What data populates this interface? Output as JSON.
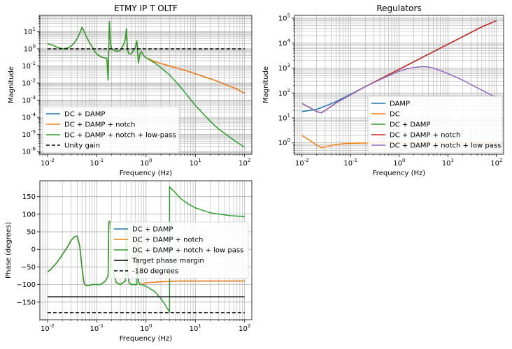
{
  "chart_data": [
    {
      "type": "line",
      "id": "oltf",
      "title": "ETMY IP T OLTF",
      "xlabel": "Frequency (Hz)",
      "ylabel": "Magnitude",
      "xscale": "log",
      "yscale": "log",
      "xlim": [
        0.007,
        140
      ],
      "ylim": [
        7e-07,
        90
      ],
      "grid": true,
      "legend": "lower-left",
      "xticks": [
        {
          "v": 0.01,
          "m": "10",
          "e": "-2"
        },
        {
          "v": 0.1,
          "m": "10",
          "e": "-1"
        },
        {
          "v": 1,
          "m": "10",
          "e": "0"
        },
        {
          "v": 10,
          "m": "10",
          "e": "1"
        },
        {
          "v": 100,
          "m": "10",
          "e": "2"
        }
      ],
      "yticks": [
        {
          "v": 1e-06,
          "m": "10",
          "e": "-6"
        },
        {
          "v": 1e-05,
          "m": "10",
          "e": "-5"
        },
        {
          "v": 0.0001,
          "m": "10",
          "e": "-4"
        },
        {
          "v": 0.001,
          "m": "10",
          "e": "-3"
        },
        {
          "v": 0.01,
          "m": "10",
          "e": "-2"
        },
        {
          "v": 0.1,
          "m": "10",
          "e": "-1"
        },
        {
          "v": 1,
          "m": "10",
          "e": "0"
        },
        {
          "v": 10,
          "m": "10",
          "e": "1"
        }
      ],
      "series": [
        {
          "name": "DC + DAMP",
          "color": "#1f77b4",
          "dash": "",
          "x": [
            0.01,
            0.013,
            0.016,
            0.02,
            0.025,
            0.03,
            0.035,
            0.04,
            0.045,
            0.05,
            0.055,
            0.06,
            0.07,
            0.08,
            0.09,
            0.1,
            0.12,
            0.14,
            0.16,
            0.17,
            0.18,
            0.19,
            0.2,
            0.25,
            0.3,
            0.35,
            0.38,
            0.4,
            0.42,
            0.45,
            0.5,
            0.6,
            0.65,
            0.7,
            0.75,
            0.8,
            0.9,
            1,
            1.5,
            2,
            3,
            5,
            7,
            10,
            20,
            30,
            50,
            70,
            100
          ],
          "y": [
            2,
            1.6,
            1.2,
            1.0,
            1.1,
            1.4,
            2.2,
            4,
            8,
            18,
            11,
            6,
            2.5,
            1.3,
            0.75,
            0.5,
            0.35,
            0.3,
            0.28,
            0.015,
            40,
            2,
            1,
            0.7,
            0.8,
            1.8,
            3.5,
            15,
            0.9,
            0.5,
            0.5,
            1.1,
            3,
            0.15,
            0.5,
            0.7,
            0.4,
            0.3,
            0.18,
            0.14,
            0.1,
            0.065,
            0.05,
            0.035,
            0.018,
            0.012,
            0.0065,
            0.0045,
            0.0025
          ]
        },
        {
          "name": "DC + DAMP + notch",
          "color": "#ff7f0e",
          "dash": "",
          "x": [
            0.01,
            0.013,
            0.016,
            0.02,
            0.025,
            0.03,
            0.035,
            0.04,
            0.045,
            0.05,
            0.055,
            0.06,
            0.07,
            0.08,
            0.09,
            0.1,
            0.12,
            0.14,
            0.16,
            0.17,
            0.18,
            0.19,
            0.2,
            0.25,
            0.3,
            0.35,
            0.38,
            0.4,
            0.42,
            0.45,
            0.5,
            0.6,
            0.65,
            0.7,
            0.75,
            0.8,
            0.9,
            1,
            1.5,
            2,
            3,
            5,
            7,
            10,
            20,
            30,
            50,
            70,
            100
          ],
          "y": [
            2,
            1.6,
            1.2,
            1.0,
            1.1,
            1.4,
            2.2,
            4,
            8,
            18,
            11,
            6,
            2.5,
            1.3,
            0.75,
            0.5,
            0.35,
            0.3,
            0.28,
            0.015,
            40,
            2,
            1,
            0.7,
            0.8,
            1.8,
            3.5,
            15,
            0.9,
            0.5,
            0.5,
            1.1,
            3,
            0.15,
            0.5,
            0.7,
            0.4,
            0.3,
            0.18,
            0.14,
            0.1,
            0.065,
            0.05,
            0.035,
            0.018,
            0.012,
            0.0065,
            0.0045,
            0.0025
          ]
        },
        {
          "name": "DC + DAMP + notch + low-pass",
          "color": "#2ca02c",
          "dash": "",
          "x": [
            0.01,
            0.013,
            0.016,
            0.02,
            0.025,
            0.03,
            0.035,
            0.04,
            0.045,
            0.05,
            0.055,
            0.06,
            0.07,
            0.08,
            0.09,
            0.1,
            0.12,
            0.14,
            0.16,
            0.17,
            0.18,
            0.19,
            0.2,
            0.25,
            0.3,
            0.35,
            0.38,
            0.4,
            0.42,
            0.45,
            0.5,
            0.6,
            0.65,
            0.7,
            0.75,
            0.8,
            0.9,
            1,
            1.5,
            2,
            3,
            5,
            7,
            10,
            20,
            30,
            50,
            70,
            100
          ],
          "y": [
            2,
            1.6,
            1.2,
            1.0,
            1.1,
            1.4,
            2.2,
            4,
            8,
            18,
            11,
            6,
            2.5,
            1.3,
            0.75,
            0.5,
            0.35,
            0.3,
            0.28,
            0.015,
            40,
            2,
            1,
            0.7,
            0.8,
            1.8,
            3.5,
            15,
            0.9,
            0.5,
            0.5,
            1.1,
            3,
            0.15,
            0.5,
            0.7,
            0.4,
            0.3,
            0.15,
            0.08,
            0.03,
            0.006,
            0.0018,
            0.0005,
            6e-05,
            2e-05,
            7e-06,
            3.5e-06,
            1.8e-06
          ]
        },
        {
          "name": "Unity gain",
          "color": "#000000",
          "dash": "5,3",
          "x": [
            0.01,
            100
          ],
          "y": [
            1,
            1
          ]
        }
      ]
    },
    {
      "type": "line",
      "id": "reg",
      "title": "Regulators",
      "xlabel": "Frequency (Hz)",
      "ylabel": "Magnitude",
      "xscale": "log",
      "yscale": "log",
      "xlim": [
        0.007,
        140
      ],
      "ylim": [
        0.35,
        130000
      ],
      "grid": true,
      "legend": "lower-right",
      "xticks": [
        {
          "v": 0.01,
          "m": "10",
          "e": "-2"
        },
        {
          "v": 0.1,
          "m": "10",
          "e": "-1"
        },
        {
          "v": 1,
          "m": "10",
          "e": "0"
        },
        {
          "v": 10,
          "m": "10",
          "e": "1"
        },
        {
          "v": 100,
          "m": "10",
          "e": "2"
        }
      ],
      "yticks": [
        {
          "v": 1,
          "m": "10",
          "e": "0"
        },
        {
          "v": 10,
          "m": "10",
          "e": "1"
        },
        {
          "v": 100,
          "m": "10",
          "e": "2"
        },
        {
          "v": 1000,
          "m": "10",
          "e": "3"
        },
        {
          "v": 10000,
          "m": "10",
          "e": "4"
        },
        {
          "v": 100000,
          "m": "10",
          "e": "5"
        }
      ],
      "series": [
        {
          "name": "DAMP",
          "color": "#1f77b4",
          "dash": "",
          "x": [
            0.01,
            0.02,
            0.03,
            0.05,
            0.1,
            0.2,
            0.5,
            1,
            2,
            5,
            10,
            20,
            50,
            100
          ],
          "y": [
            18,
            22,
            30,
            45,
            90,
            180,
            450,
            900,
            1800,
            4500,
            9000,
            18000,
            45000,
            80000
          ]
        },
        {
          "name": "DC",
          "color": "#ff7f0e",
          "dash": "",
          "x": [
            0.01,
            0.015,
            0.02,
            0.025,
            0.03,
            0.04,
            0.05,
            0.07,
            0.1,
            0.2,
            0.5,
            1,
            10,
            100
          ],
          "y": [
            2,
            1.2,
            0.8,
            0.65,
            0.68,
            0.78,
            0.85,
            0.92,
            0.96,
            0.99,
            1,
            1,
            1,
            1
          ]
        },
        {
          "name": "DC + DAMP",
          "color": "#2ca02c",
          "dash": "",
          "x": [
            0.01,
            0.015,
            0.02,
            0.025,
            0.03,
            0.05,
            0.1,
            0.2,
            0.5,
            1,
            2,
            5,
            10,
            20,
            50,
            100
          ],
          "y": [
            38,
            25,
            18,
            16,
            20,
            40,
            85,
            180,
            450,
            900,
            1800,
            4500,
            9000,
            18000,
            45000,
            80000
          ]
        },
        {
          "name": "DC + DAMP + notch",
          "color": "#d62728",
          "dash": "",
          "x": [
            0.01,
            0.015,
            0.02,
            0.025,
            0.03,
            0.05,
            0.1,
            0.2,
            0.5,
            1,
            2,
            5,
            10,
            20,
            50,
            100
          ],
          "y": [
            38,
            25,
            18,
            16,
            20,
            40,
            85,
            180,
            450,
            900,
            1800,
            4500,
            9000,
            18000,
            45000,
            80000
          ]
        },
        {
          "name": "DC + DAMP + notch + low pass",
          "color": "#9467bd",
          "dash": "",
          "x": [
            0.01,
            0.015,
            0.02,
            0.025,
            0.03,
            0.05,
            0.1,
            0.2,
            0.5,
            1,
            1.5,
            2,
            3,
            4,
            5,
            7,
            10,
            20,
            50,
            100
          ],
          "y": [
            38,
            25,
            18,
            16,
            20,
            40,
            85,
            180,
            420,
            750,
            950,
            1050,
            1150,
            1100,
            1000,
            800,
            600,
            330,
            130,
            65
          ]
        }
      ]
    },
    {
      "type": "line",
      "id": "phase",
      "title": "",
      "xlabel": "Frequency (Hz)",
      "ylabel": "Phase (degrees)",
      "xscale": "log",
      "yscale": "linear",
      "xlim": [
        0.007,
        140
      ],
      "ylim": [
        -200,
        195
      ],
      "grid": true,
      "legend": "center",
      "xticks": [
        {
          "v": 0.01,
          "m": "10",
          "e": "-2"
        },
        {
          "v": 0.1,
          "m": "10",
          "e": "-1"
        },
        {
          "v": 1,
          "m": "10",
          "e": "0"
        },
        {
          "v": 10,
          "m": "10",
          "e": "1"
        },
        {
          "v": 100,
          "m": "10",
          "e": "2"
        }
      ],
      "yticks": [
        {
          "v": -150,
          "m": "−150",
          "e": ""
        },
        {
          "v": -100,
          "m": "−100",
          "e": ""
        },
        {
          "v": -50,
          "m": "−50",
          "e": ""
        },
        {
          "v": 0,
          "m": "0",
          "e": ""
        },
        {
          "v": 50,
          "m": "50",
          "e": ""
        },
        {
          "v": 100,
          "m": "100",
          "e": ""
        },
        {
          "v": 150,
          "m": "150",
          "e": ""
        }
      ],
      "series": [
        {
          "name": "DC + DAMP",
          "color": "#1f77b4",
          "dash": "",
          "x": [
            0.01,
            0.012,
            0.015,
            0.018,
            0.02,
            0.025,
            0.03,
            0.035,
            0.04,
            0.045,
            0.05,
            0.055,
            0.06,
            0.07,
            0.08,
            0.1,
            0.12,
            0.15,
            0.17,
            0.175,
            0.18,
            0.19,
            0.2,
            0.25,
            0.3,
            0.38,
            0.4,
            0.42,
            0.45,
            0.5,
            0.6,
            0.65,
            0.68,
            0.7,
            0.75,
            0.8,
            1,
            2,
            3,
            5,
            10,
            20,
            50,
            100
          ],
          "y": [
            -65,
            -55,
            -40,
            -25,
            -15,
            5,
            25,
            35,
            38,
            10,
            -50,
            -95,
            -103,
            -103,
            -100,
            -100,
            -100,
            -90,
            -75,
            75,
            80,
            75,
            -50,
            -95,
            -100,
            -90,
            65,
            -60,
            -95,
            -100,
            -100,
            -100,
            30,
            -90,
            -100,
            -100,
            -95,
            -92,
            -91,
            -90,
            -90,
            -90,
            -90,
            -90
          ]
        },
        {
          "name": "DC + DAMP + notch",
          "color": "#ff7f0e",
          "dash": "",
          "x": [
            0.01,
            0.012,
            0.015,
            0.018,
            0.02,
            0.025,
            0.03,
            0.035,
            0.04,
            0.045,
            0.05,
            0.055,
            0.06,
            0.07,
            0.08,
            0.1,
            0.12,
            0.15,
            0.17,
            0.175,
            0.18,
            0.19,
            0.2,
            0.25,
            0.3,
            0.38,
            0.4,
            0.42,
            0.45,
            0.5,
            0.6,
            0.65,
            0.68,
            0.7,
            0.75,
            0.8,
            1,
            2,
            3,
            5,
            10,
            20,
            50,
            100
          ],
          "y": [
            -65,
            -55,
            -40,
            -25,
            -15,
            5,
            25,
            35,
            38,
            10,
            -50,
            -95,
            -103,
            -103,
            -100,
            -100,
            -100,
            -90,
            -75,
            75,
            80,
            75,
            -50,
            -95,
            -100,
            -90,
            65,
            -60,
            -95,
            -100,
            -100,
            -100,
            30,
            -90,
            -100,
            -100,
            -95,
            -92,
            -91,
            -90,
            -90,
            -90,
            -90,
            -90
          ]
        },
        {
          "name": "DC + DAMP + notch + low pass",
          "color": "#2ca02c",
          "dash": "",
          "x": [
            0.01,
            0.012,
            0.015,
            0.018,
            0.02,
            0.025,
            0.03,
            0.035,
            0.04,
            0.045,
            0.05,
            0.055,
            0.06,
            0.07,
            0.08,
            0.1,
            0.12,
            0.15,
            0.17,
            0.175,
            0.18,
            0.19,
            0.2,
            0.25,
            0.3,
            0.38,
            0.4,
            0.42,
            0.45,
            0.5,
            0.6,
            0.65,
            0.68,
            0.7,
            0.75,
            0.8,
            1,
            1.5,
            2,
            2.5,
            3,
            3.001,
            4,
            5,
            7,
            10,
            20,
            50,
            100
          ],
          "y": [
            -65,
            -55,
            -40,
            -25,
            -15,
            5,
            25,
            35,
            38,
            10,
            -50,
            -95,
            -103,
            -103,
            -100,
            -100,
            -100,
            -90,
            -75,
            75,
            80,
            75,
            -50,
            -95,
            -100,
            -90,
            65,
            -60,
            -95,
            -100,
            -100,
            -100,
            30,
            -90,
            -100,
            -100,
            -105,
            -120,
            -140,
            -160,
            -178,
            178,
            160,
            145,
            130,
            118,
            104,
            96,
            93
          ]
        },
        {
          "name": "Target phase margin",
          "color": "#000000",
          "dash": "",
          "x": [
            0.01,
            100
          ],
          "y": [
            -135,
            -135
          ]
        },
        {
          "name": "-180 degrees",
          "color": "#000000",
          "dash": "5,3",
          "x": [
            0.01,
            100
          ],
          "y": [
            -180,
            -180
          ]
        }
      ]
    }
  ]
}
